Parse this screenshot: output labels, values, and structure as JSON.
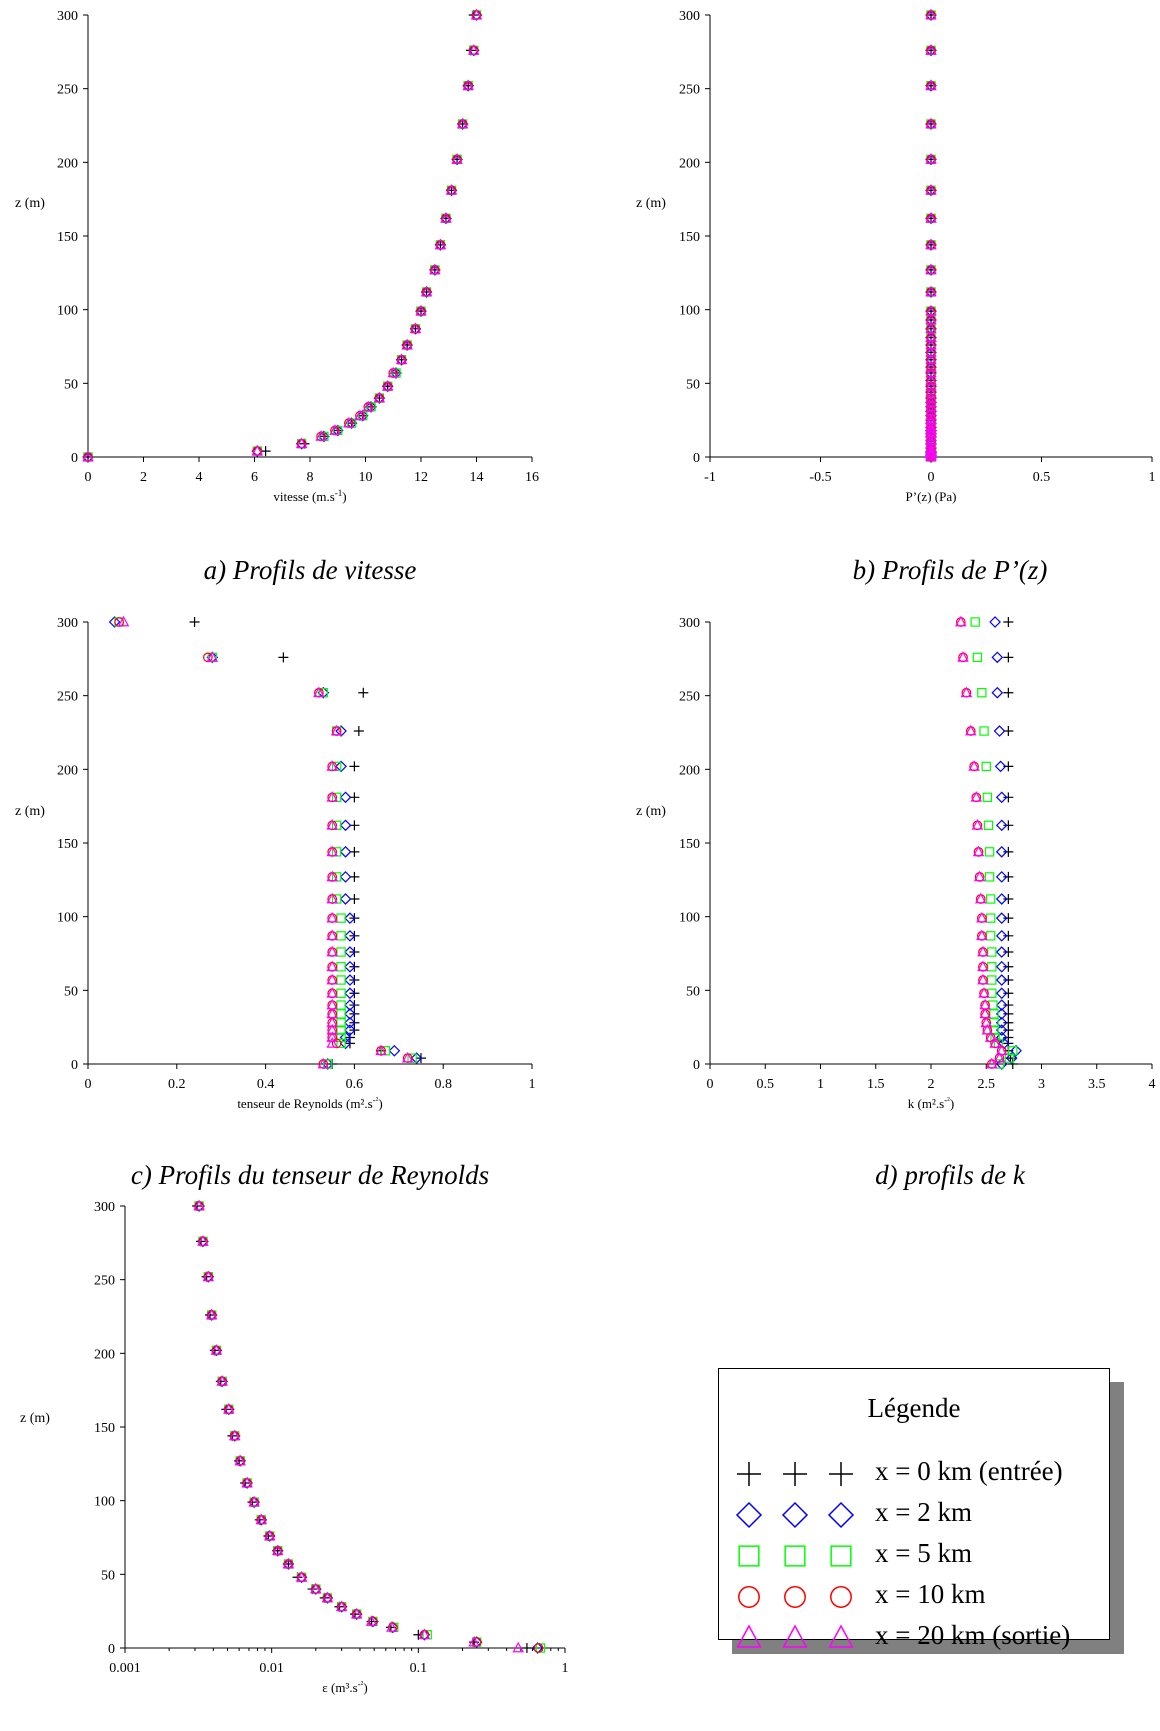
{
  "captions": {
    "a": "a) Profils de vitesse",
    "b": "b) Profils de P’(z)",
    "c": "c) Profils du tenseur de Reynolds",
    "d": "d) profils de k"
  },
  "legend": {
    "title": "Légende",
    "entries": [
      {
        "marker": "plus",
        "color": "#000000",
        "label": "x = 0 km (entrée)"
      },
      {
        "marker": "diamond",
        "color": "#0000ff",
        "label": "x = 2 km"
      },
      {
        "marker": "square",
        "color": "#00ff00",
        "label": "x = 5 km"
      },
      {
        "marker": "circle",
        "color": "#ff0000",
        "label": "x = 10 km"
      },
      {
        "marker": "triangle",
        "color": "#ff00ff",
        "label": "x = 20 km (sortie)"
      }
    ]
  },
  "chart_data": [
    {
      "id": "a",
      "type": "scatter",
      "xscale": "linear",
      "xlabel": "vitesse (m.s-1)",
      "ylabel": "z (m)",
      "xlim": [
        0,
        16
      ],
      "ylim": [
        0,
        300
      ],
      "xticks": [
        "0",
        "2",
        "4",
        "6",
        "8",
        "10",
        "12",
        "14",
        "16"
      ],
      "yticks": [
        "0",
        "50",
        "100",
        "150",
        "200",
        "250",
        "300"
      ],
      "z": [
        0,
        4,
        9,
        14,
        18,
        23,
        28,
        34,
        40,
        48,
        57,
        66,
        76,
        87,
        99,
        112,
        127,
        144,
        162,
        181,
        202,
        226,
        252,
        276,
        300
      ],
      "series": [
        {
          "marker": "plus",
          "color": "#000000",
          "values": [
            0,
            6.4,
            7.8,
            8.5,
            9.0,
            9.5,
            9.9,
            10.2,
            10.5,
            10.8,
            11.1,
            11.3,
            11.5,
            11.8,
            12.0,
            12.2,
            12.5,
            12.7,
            12.9,
            13.1,
            13.3,
            13.5,
            13.7,
            13.8,
            13.9
          ]
        },
        {
          "marker": "diamond",
          "color": "#0000ff",
          "values": [
            0,
            6.1,
            7.7,
            8.5,
            9.0,
            9.5,
            9.9,
            10.2,
            10.5,
            10.8,
            11.1,
            11.3,
            11.5,
            11.8,
            12.0,
            12.2,
            12.5,
            12.7,
            12.9,
            13.1,
            13.3,
            13.5,
            13.7,
            13.9,
            14.0
          ]
        },
        {
          "marker": "square",
          "color": "#00ff00",
          "values": [
            0,
            6.1,
            7.7,
            8.5,
            9.0,
            9.5,
            9.9,
            10.2,
            10.5,
            10.8,
            11.1,
            11.3,
            11.5,
            11.8,
            12.0,
            12.2,
            12.5,
            12.7,
            12.9,
            13.1,
            13.3,
            13.5,
            13.7,
            13.9,
            14.0
          ]
        },
        {
          "marker": "circle",
          "color": "#ff0000",
          "values": [
            0,
            6.1,
            7.7,
            8.4,
            8.9,
            9.4,
            9.8,
            10.1,
            10.5,
            10.8,
            11.0,
            11.3,
            11.5,
            11.8,
            12.0,
            12.2,
            12.5,
            12.7,
            12.9,
            13.1,
            13.3,
            13.5,
            13.7,
            13.9,
            14.0
          ]
        },
        {
          "marker": "triangle",
          "color": "#ff00ff",
          "values": [
            0,
            6.1,
            7.7,
            8.4,
            8.9,
            9.4,
            9.8,
            10.1,
            10.5,
            10.8,
            11.0,
            11.3,
            11.5,
            11.8,
            12.0,
            12.2,
            12.5,
            12.7,
            12.9,
            13.1,
            13.3,
            13.5,
            13.7,
            13.9,
            14.0
          ]
        }
      ]
    },
    {
      "id": "b",
      "type": "scatter",
      "xscale": "linear",
      "xlabel": "P’(z) (Pa)",
      "ylabel": "z (m)",
      "xlim": [
        -1,
        1
      ],
      "ylim": [
        0,
        300
      ],
      "xticks": [
        "-1",
        "-0.5",
        "0",
        "0.5",
        "1"
      ],
      "yticks": [
        "0",
        "50",
        "100",
        "150",
        "200",
        "250",
        "300"
      ],
      "z": [
        0,
        1,
        2,
        3,
        4,
        6,
        9,
        11,
        14,
        16,
        18,
        20,
        23,
        25,
        28,
        31,
        34,
        37,
        40,
        44,
        48,
        52,
        57,
        61,
        66,
        71,
        76,
        81,
        87,
        93,
        99,
        112,
        127,
        144,
        162,
        181,
        202,
        226,
        252,
        276,
        300
      ],
      "series": [
        {
          "marker": "plus",
          "color": "#000000",
          "value": 0
        },
        {
          "marker": "diamond",
          "color": "#0000ff",
          "value": 0
        },
        {
          "marker": "square",
          "color": "#00ff00",
          "value": 0
        },
        {
          "marker": "circle",
          "color": "#ff0000",
          "value": 0
        },
        {
          "marker": "triangle",
          "color": "#ff00ff",
          "value": 0
        }
      ]
    },
    {
      "id": "c",
      "type": "scatter",
      "xscale": "linear",
      "xlabel": "tenseur de Reynolds (m².s-²)",
      "ylabel": "z (m)",
      "xlim": [
        0,
        1
      ],
      "ylim": [
        0,
        300
      ],
      "xticks": [
        "0",
        "0.2",
        "0.4",
        "0.6",
        "0.8",
        "1"
      ],
      "yticks": [
        "0",
        "50",
        "100",
        "150",
        "200",
        "250",
        "300"
      ],
      "z": [
        0,
        4,
        9,
        14,
        18,
        23,
        28,
        34,
        40,
        48,
        57,
        66,
        76,
        87,
        99,
        112,
        127,
        144,
        162,
        181,
        202,
        226,
        252,
        276,
        300
      ],
      "series": [
        {
          "marker": "plus",
          "color": "#000000",
          "values": [
            0.55,
            0.75,
            0.66,
            0.59,
            0.59,
            0.6,
            0.6,
            0.6,
            0.6,
            0.6,
            0.6,
            0.6,
            0.6,
            0.6,
            0.6,
            0.6,
            0.6,
            0.6,
            0.6,
            0.6,
            0.6,
            0.61,
            0.62,
            0.44,
            0.24
          ]
        },
        {
          "marker": "diamond",
          "color": "#0000ff",
          "values": [
            0.54,
            0.74,
            0.69,
            0.58,
            0.58,
            0.59,
            0.59,
            0.59,
            0.59,
            0.59,
            0.59,
            0.59,
            0.59,
            0.59,
            0.59,
            0.58,
            0.58,
            0.58,
            0.58,
            0.58,
            0.57,
            0.57,
            0.53,
            0.28,
            0.06
          ]
        },
        {
          "marker": "square",
          "color": "#00ff00",
          "values": [
            0.54,
            0.73,
            0.67,
            0.57,
            0.57,
            0.57,
            0.57,
            0.57,
            0.57,
            0.57,
            0.57,
            0.57,
            0.57,
            0.57,
            0.57,
            0.56,
            0.56,
            0.56,
            0.56,
            0.56,
            0.56,
            0.56,
            0.53,
            0.28,
            0.07
          ]
        },
        {
          "marker": "circle",
          "color": "#ff0000",
          "values": [
            0.53,
            0.72,
            0.66,
            0.56,
            0.55,
            0.55,
            0.55,
            0.55,
            0.55,
            0.55,
            0.55,
            0.55,
            0.55,
            0.55,
            0.55,
            0.55,
            0.55,
            0.55,
            0.55,
            0.55,
            0.55,
            0.56,
            0.52,
            0.27,
            0.07
          ]
        },
        {
          "marker": "triangle",
          "color": "#ff00ff",
          "values": [
            0.53,
            0.72,
            0.66,
            0.55,
            0.55,
            0.55,
            0.55,
            0.55,
            0.55,
            0.55,
            0.55,
            0.55,
            0.55,
            0.55,
            0.55,
            0.55,
            0.55,
            0.55,
            0.55,
            0.55,
            0.55,
            0.56,
            0.52,
            0.28,
            0.08
          ]
        }
      ]
    },
    {
      "id": "d",
      "type": "scatter",
      "xscale": "linear",
      "xlabel": "k (m².s-²)",
      "ylabel": "z (m)",
      "xlim": [
        0,
        4
      ],
      "ylim": [
        0,
        300
      ],
      "xticks": [
        "0",
        "0.5",
        "1",
        "1.5",
        "2",
        "2.5",
        "3",
        "3.5",
        "4"
      ],
      "yticks": [
        "0",
        "50",
        "100",
        "150",
        "200",
        "250",
        "300"
      ],
      "z": [
        0,
        4,
        9,
        14,
        18,
        23,
        28,
        34,
        40,
        48,
        57,
        66,
        76,
        87,
        99,
        112,
        127,
        144,
        162,
        181,
        202,
        226,
        252,
        276,
        300
      ],
      "series": [
        {
          "marker": "plus",
          "color": "#000000",
          "values": [
            2.74,
            2.72,
            2.7,
            2.7,
            2.7,
            2.7,
            2.7,
            2.7,
            2.7,
            2.7,
            2.7,
            2.7,
            2.7,
            2.7,
            2.7,
            2.7,
            2.7,
            2.7,
            2.7,
            2.7,
            2.7,
            2.7,
            2.7,
            2.7,
            2.7
          ]
        },
        {
          "marker": "diamond",
          "color": "#0000ff",
          "values": [
            2.64,
            2.73,
            2.77,
            2.66,
            2.64,
            2.64,
            2.64,
            2.64,
            2.64,
            2.64,
            2.64,
            2.64,
            2.64,
            2.64,
            2.64,
            2.64,
            2.64,
            2.64,
            2.64,
            2.64,
            2.63,
            2.62,
            2.6,
            2.6,
            2.58
          ]
        },
        {
          "marker": "square",
          "color": "#00ff00",
          "values": [
            2.62,
            2.71,
            2.74,
            2.61,
            2.58,
            2.57,
            2.57,
            2.57,
            2.56,
            2.55,
            2.55,
            2.55,
            2.55,
            2.54,
            2.54,
            2.54,
            2.53,
            2.53,
            2.52,
            2.51,
            2.5,
            2.48,
            2.46,
            2.42,
            2.4
          ]
        },
        {
          "marker": "circle",
          "color": "#ff0000",
          "values": [
            2.55,
            2.62,
            2.64,
            2.58,
            2.54,
            2.51,
            2.5,
            2.49,
            2.49,
            2.48,
            2.47,
            2.47,
            2.47,
            2.46,
            2.46,
            2.45,
            2.44,
            2.43,
            2.42,
            2.41,
            2.39,
            2.36,
            2.32,
            2.29,
            2.27
          ]
        },
        {
          "marker": "triangle",
          "color": "#ff00ff",
          "values": [
            2.55,
            2.62,
            2.64,
            2.58,
            2.54,
            2.51,
            2.5,
            2.49,
            2.49,
            2.48,
            2.47,
            2.47,
            2.47,
            2.46,
            2.46,
            2.45,
            2.44,
            2.43,
            2.42,
            2.41,
            2.39,
            2.36,
            2.32,
            2.29,
            2.27
          ]
        }
      ]
    },
    {
      "id": "e",
      "type": "scatter",
      "xscale": "log",
      "xlabel": "ε (m³.s-²)",
      "ylabel": "z (m)",
      "xlim": [
        0.001,
        1
      ],
      "ylim": [
        0,
        300
      ],
      "xticks": [
        "0.001",
        "0.01",
        "0.1",
        "1"
      ],
      "yticks": [
        "0",
        "50",
        "100",
        "150",
        "200",
        "250",
        "300"
      ],
      "z": [
        0,
        4,
        9,
        14,
        18,
        23,
        28,
        34,
        40,
        48,
        57,
        66,
        76,
        87,
        99,
        112,
        127,
        144,
        162,
        181,
        202,
        226,
        252,
        276,
        300
      ],
      "series": [
        {
          "marker": "plus",
          "color": "#000000",
          "values": [
            0.55,
            0.24,
            0.1,
            0.065,
            0.048,
            0.037,
            0.029,
            0.023,
            0.019,
            0.015,
            0.013,
            0.011,
            0.0095,
            0.0083,
            0.0074,
            0.0066,
            0.006,
            0.0054,
            0.0049,
            0.0045,
            0.0041,
            0.0038,
            0.0036,
            0.0033,
            0.0031
          ]
        },
        {
          "marker": "diamond",
          "color": "#0000ff",
          "values": [
            0.65,
            0.25,
            0.11,
            0.067,
            0.049,
            0.038,
            0.03,
            0.024,
            0.02,
            0.016,
            0.013,
            0.011,
            0.0097,
            0.0085,
            0.0076,
            0.0068,
            0.0061,
            0.0056,
            0.0051,
            0.0046,
            0.0042,
            0.0039,
            0.0037,
            0.0034,
            0.0032
          ]
        },
        {
          "marker": "square",
          "color": "#00ff00",
          "values": [
            0.68,
            0.25,
            0.115,
            0.068,
            0.049,
            0.038,
            0.03,
            0.024,
            0.02,
            0.016,
            0.013,
            0.011,
            0.0097,
            0.0085,
            0.0076,
            0.0068,
            0.0061,
            0.0056,
            0.0051,
            0.0046,
            0.0042,
            0.0039,
            0.0037,
            0.0034,
            0.0032
          ]
        },
        {
          "marker": "circle",
          "color": "#ff0000",
          "values": [
            0.66,
            0.25,
            0.11,
            0.067,
            0.049,
            0.038,
            0.03,
            0.024,
            0.02,
            0.016,
            0.013,
            0.011,
            0.0097,
            0.0085,
            0.0076,
            0.0068,
            0.0061,
            0.0056,
            0.0051,
            0.0046,
            0.0042,
            0.0039,
            0.0037,
            0.0034,
            0.0032
          ]
        },
        {
          "marker": "triangle",
          "color": "#ff00ff",
          "values": [
            0.48,
            0.24,
            0.11,
            0.066,
            0.048,
            0.038,
            0.03,
            0.024,
            0.02,
            0.016,
            0.013,
            0.011,
            0.0097,
            0.0085,
            0.0076,
            0.0068,
            0.0061,
            0.0056,
            0.0051,
            0.0046,
            0.0042,
            0.0039,
            0.0037,
            0.0034,
            0.0032
          ]
        }
      ]
    }
  ]
}
